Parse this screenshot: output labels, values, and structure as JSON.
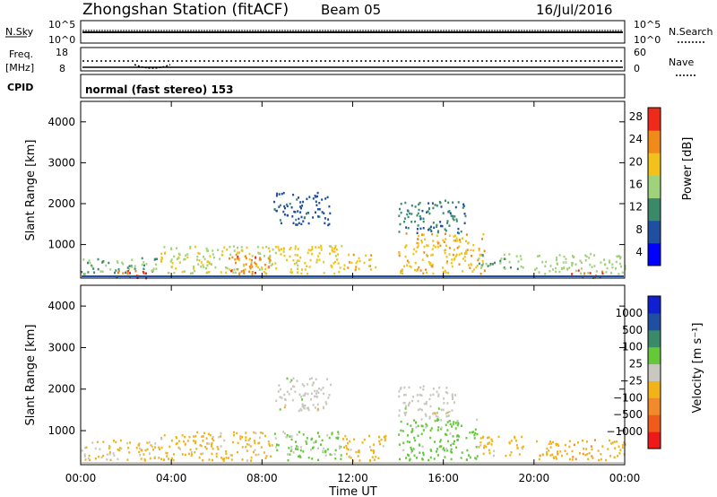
{
  "header": {
    "station": "Zhongshan Station (fitACF)",
    "beam": "Beam 05",
    "date": "16/Jul/2016"
  },
  "noise_panel": {
    "left_label": "N.Sky",
    "left_ticks": [
      "10^5",
      "10^0"
    ],
    "right_label": "N.Search",
    "right_ticks": [
      "10^5",
      "10^0"
    ]
  },
  "freq_panel": {
    "left_label_1": "Freq.",
    "left_label_2": "[MHz]",
    "left_ticks": [
      "18",
      "8"
    ],
    "right_label": "Nave",
    "right_ticks": [
      "60",
      "0"
    ]
  },
  "cpid_panel": {
    "label": "CPID",
    "mode": "normal (fast stereo) 153"
  },
  "power_panel": {
    "ylabel": "Slant Range [km]",
    "y_ticks": [
      "4000",
      "3000",
      "2000",
      "1000"
    ],
    "colorbar_label": "Power [dB]",
    "colorbar_ticks": [
      "28",
      "24",
      "20",
      "16",
      "12",
      "8",
      "4"
    ],
    "colors": [
      "#0000ff",
      "#1f4fa0",
      "#3a8a6a",
      "#9fd27a",
      "#f2c21a",
      "#f08a1a",
      "#ee2a1a"
    ]
  },
  "velocity_panel": {
    "ylabel": "Slant Range [km]",
    "y_ticks": [
      "4000",
      "3000",
      "2000",
      "1000"
    ],
    "colorbar_label": "Velocity [m s⁻¹]",
    "colorbar_ticks": [
      "1000",
      "500",
      "100",
      "25",
      "−25",
      "−100",
      "−500",
      "−1000"
    ],
    "colors": [
      "#ee1a1a",
      "#f05a1a",
      "#f08a2a",
      "#f2b21a",
      "#c8c8c0",
      "#64c83a",
      "#3a8a6a",
      "#1f4fa0",
      "#1020d0"
    ]
  },
  "xaxis": {
    "ticks": [
      "00:00",
      "04:00",
      "08:00",
      "12:00",
      "16:00",
      "20:00",
      "00:00"
    ],
    "label": "Time UT"
  },
  "chart_data": [
    {
      "type": "heatmap",
      "title": "Zhongshan Station (fitACF) Beam 05",
      "xlabel": "Time UT",
      "ylabel": "Slant Range [km]",
      "xlim": [
        0,
        24
      ],
      "ylim": [
        180,
        4500
      ],
      "colorbar": "Power [dB]",
      "clim": [
        0,
        32
      ],
      "regions": [
        {
          "t": [
            0.0,
            3.5
          ],
          "r": [
            300,
            700
          ],
          "value": 14
        },
        {
          "t": [
            1.0,
            3.0
          ],
          "r": [
            200,
            400
          ],
          "value": 28
        },
        {
          "t": [
            3.5,
            8.5
          ],
          "r": [
            300,
            1000
          ],
          "value": 18
        },
        {
          "t": [
            6.5,
            8.5
          ],
          "r": [
            300,
            800
          ],
          "value": 26
        },
        {
          "t": [
            8.5,
            11.0
          ],
          "r": [
            1500,
            2300
          ],
          "value": 8
        },
        {
          "t": [
            8.5,
            11.5
          ],
          "r": [
            300,
            1000
          ],
          "value": 20
        },
        {
          "t": [
            11.5,
            13.0
          ],
          "r": [
            400,
            800
          ],
          "value": 22
        },
        {
          "t": [
            14.0,
            17.0
          ],
          "r": [
            1300,
            2100
          ],
          "value": 10
        },
        {
          "t": [
            14.0,
            17.8
          ],
          "r": [
            300,
            1300
          ],
          "value": 22
        },
        {
          "t": [
            17.5,
            19.5
          ],
          "r": [
            400,
            800
          ],
          "value": 14
        },
        {
          "t": [
            20.0,
            24.0
          ],
          "r": [
            300,
            800
          ],
          "value": 16
        },
        {
          "t": [
            21.5,
            23.0
          ],
          "r": [
            200,
            400
          ],
          "value": 28
        }
      ]
    },
    {
      "type": "heatmap",
      "title": "",
      "xlabel": "Time UT",
      "ylabel": "Slant Range [km]",
      "xlim": [
        0,
        24
      ],
      "ylim": [
        180,
        4500
      ],
      "colorbar": "Velocity [m s⁻¹]",
      "clim": [
        -1000,
        1000
      ],
      "regions": [
        {
          "t": [
            0.0,
            3.5
          ],
          "r": [
            300,
            800
          ],
          "value": -150
        },
        {
          "t": [
            3.5,
            8.5
          ],
          "r": [
            300,
            1000
          ],
          "value": -200
        },
        {
          "t": [
            8.5,
            11.0
          ],
          "r": [
            1500,
            2300
          ],
          "value": 0
        },
        {
          "t": [
            8.5,
            11.5
          ],
          "r": [
            300,
            1000
          ],
          "value": 150
        },
        {
          "t": [
            11.5,
            13.5
          ],
          "r": [
            300,
            900
          ],
          "value": -200
        },
        {
          "t": [
            14.0,
            16.5
          ],
          "r": [
            1300,
            2100
          ],
          "value": 0
        },
        {
          "t": [
            14.0,
            17.5
          ],
          "r": [
            300,
            1300
          ],
          "value": 200
        },
        {
          "t": [
            17.5,
            19.5
          ],
          "r": [
            400,
            900
          ],
          "value": -200
        },
        {
          "t": [
            20.0,
            24.0
          ],
          "r": [
            300,
            800
          ],
          "value": -250
        }
      ]
    }
  ]
}
